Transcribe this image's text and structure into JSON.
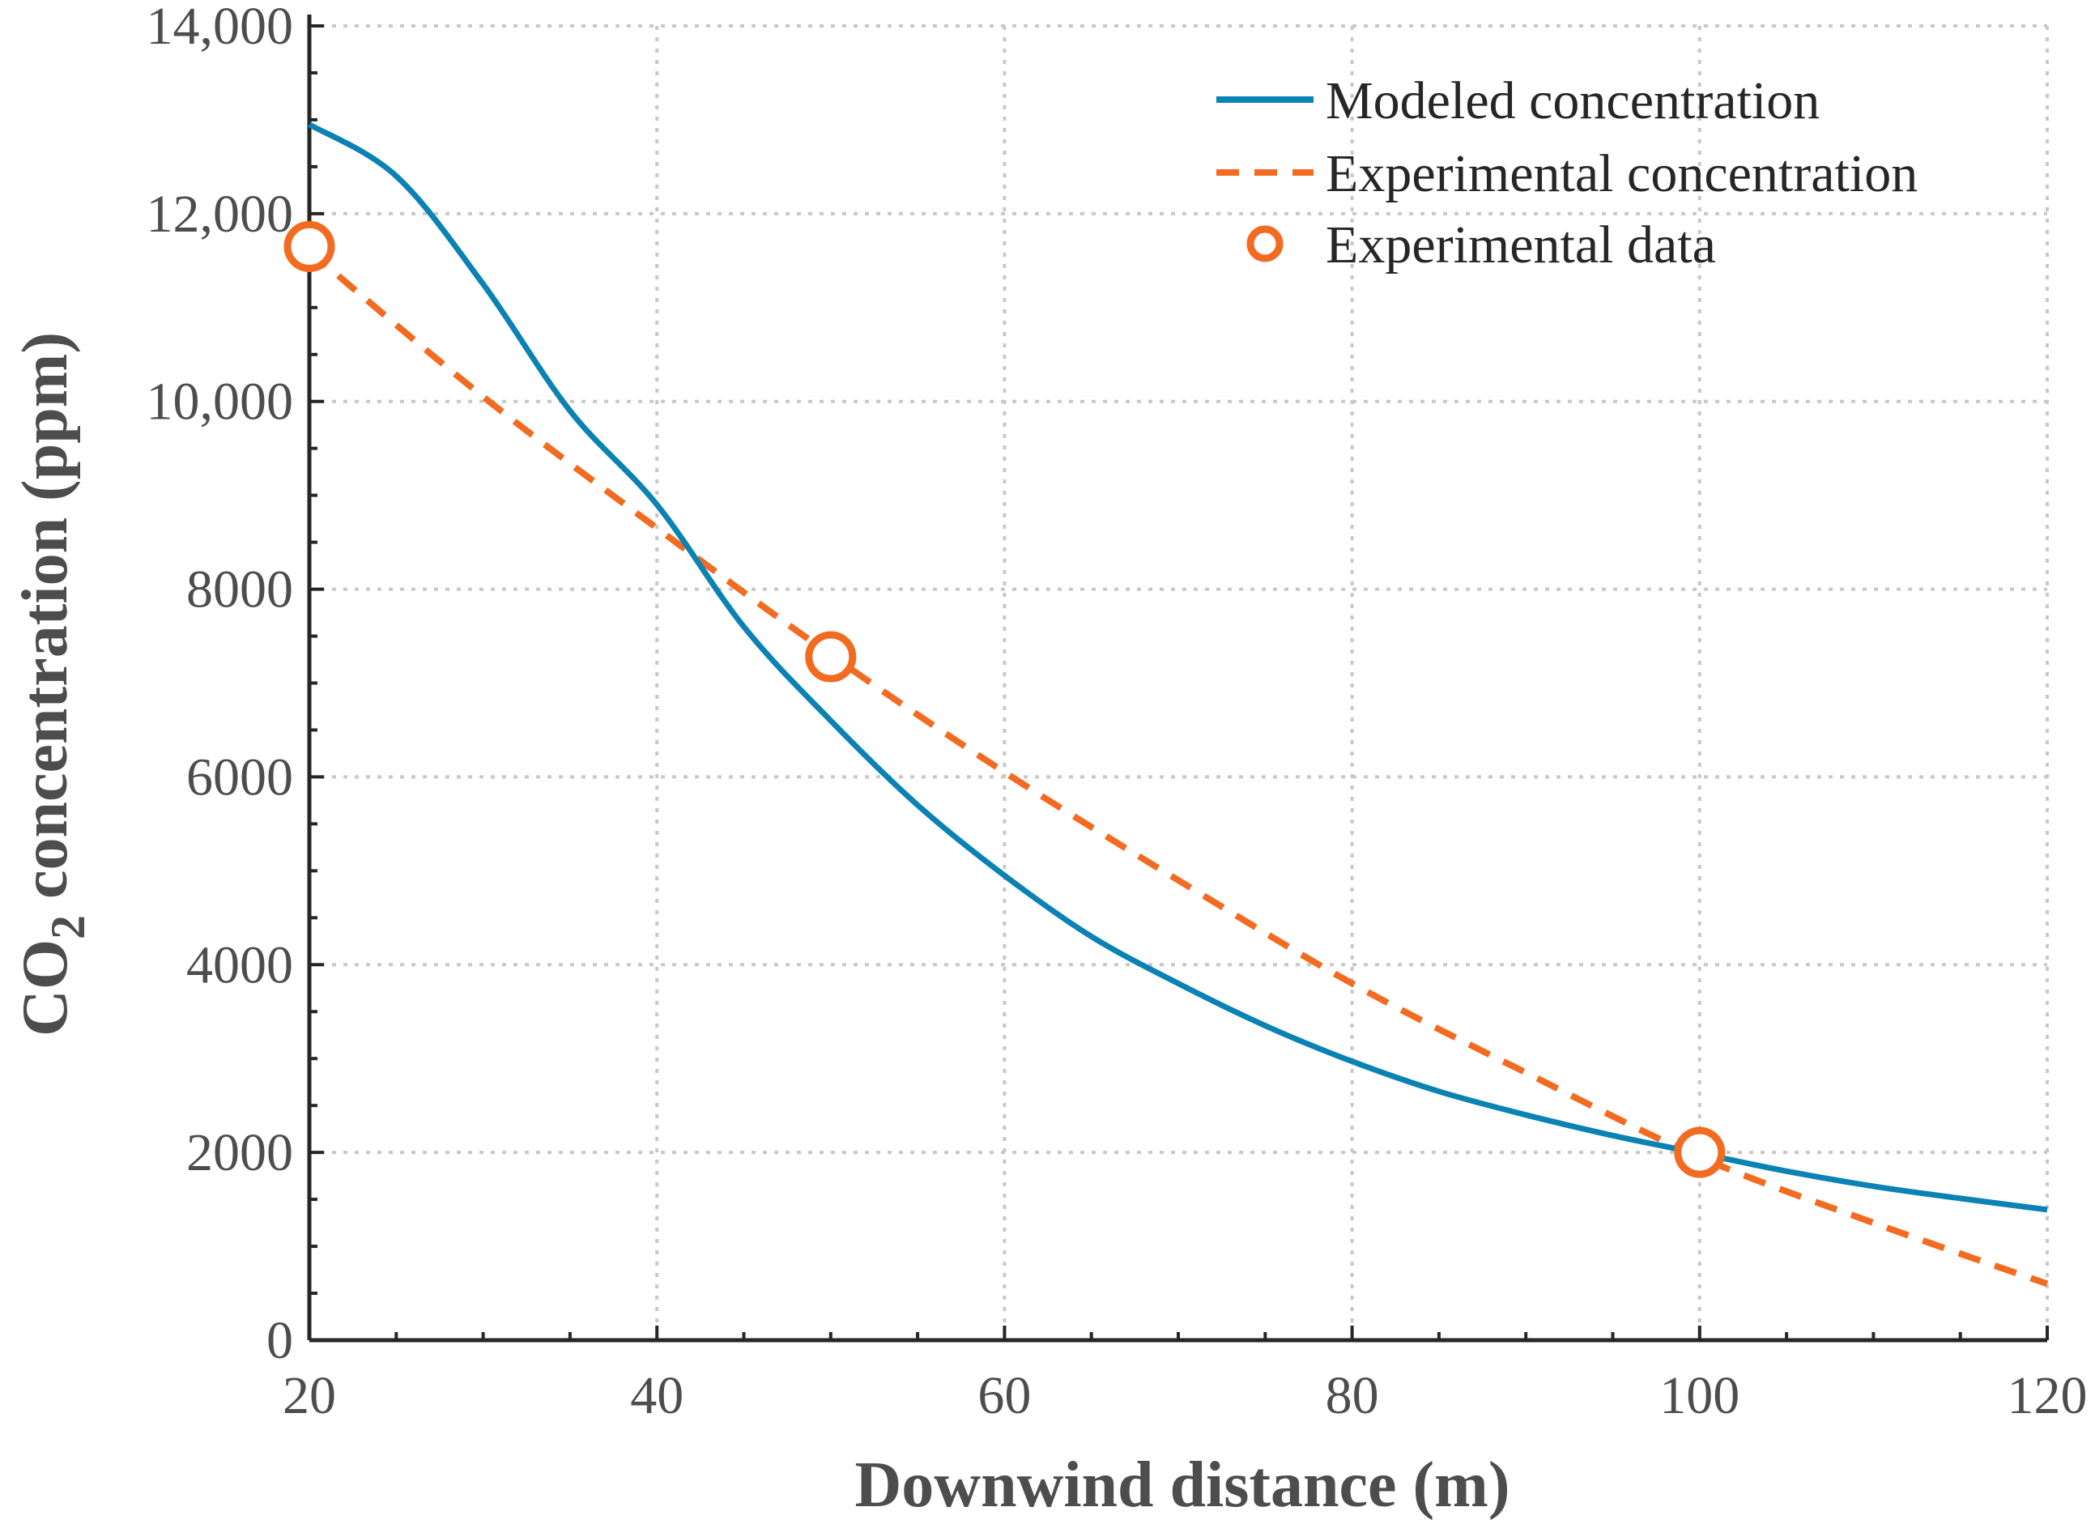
{
  "colors": {
    "modeled": "#0a82b4",
    "experimental": "#f26b21",
    "axis": "#262626",
    "text": "#4d4d4d"
  },
  "chart_data": {
    "type": "line",
    "title": "",
    "xlabel": "Downwind distance (m)",
    "ylabel_main": "CO",
    "ylabel_sub": "2",
    "ylabel_rest": " concentration (ppm)",
    "xlim": [
      20,
      120
    ],
    "ylim": [
      0,
      14000
    ],
    "grid": true,
    "x_ticks": [
      20,
      40,
      60,
      80,
      100,
      120
    ],
    "x_tick_labels": [
      "20",
      "40",
      "60",
      "80",
      "100",
      "120"
    ],
    "y_ticks": [
      0,
      2000,
      4000,
      6000,
      8000,
      10000,
      12000,
      14000
    ],
    "y_tick_labels": [
      "0",
      "2000",
      "4000",
      "6000",
      "8000",
      "10,000",
      "12,000",
      "14,000"
    ],
    "legend_placement": "top-right",
    "series": [
      {
        "name": "Modeled concentration",
        "style": "solid-line",
        "x": [
          20,
          25,
          30,
          35,
          40,
          45,
          50,
          55,
          60,
          65,
          70,
          75,
          80,
          85,
          90,
          95,
          100,
          105,
          110,
          115,
          120
        ],
        "y": [
          12950,
          12400,
          11250,
          9900,
          8900,
          7600,
          6600,
          5700,
          4950,
          4300,
          3800,
          3350,
          2970,
          2650,
          2400,
          2180,
          1990,
          1800,
          1640,
          1510,
          1390
        ]
      },
      {
        "name": "Experimental concentration",
        "style": "dashed-line",
        "x": [
          20,
          30,
          40,
          50,
          60,
          70,
          80,
          90,
          100,
          110,
          120
        ],
        "y": [
          11600,
          10050,
          8650,
          7300,
          6050,
          4900,
          3800,
          2850,
          1950,
          1250,
          600
        ]
      },
      {
        "name": "Experimental data",
        "style": "markers",
        "x": [
          20,
          50,
          100
        ],
        "y": [
          11650,
          7280,
          2000
        ]
      }
    ]
  }
}
